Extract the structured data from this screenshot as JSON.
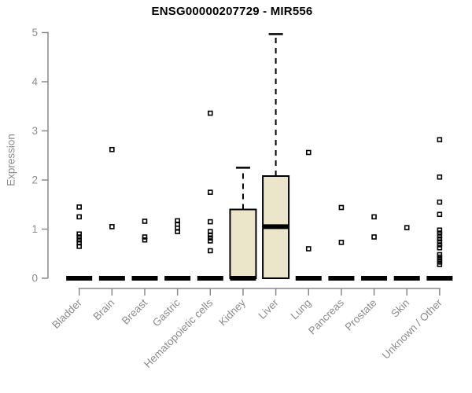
{
  "colors": {
    "box_fill": "#ebe5c9",
    "box_stroke": "#000000",
    "axis": "#8a8a8a",
    "tick_label": "#8c8c8c",
    "title": "#000000",
    "outlier": "#000000"
  },
  "chart_data": {
    "type": "box",
    "title": "ENSG00000207729 - MIR556",
    "xlabel": "",
    "ylabel": "Expression",
    "ylim": [
      0,
      5
    ],
    "yticks": [
      0,
      1,
      2,
      3,
      4,
      5
    ],
    "grid": false,
    "legend": false,
    "categories": [
      "Bladder",
      "Brain",
      "Breast",
      "Gastric",
      "Hematopoietic cells",
      "Kidney",
      "Liver",
      "Lung",
      "Pancreas",
      "Prostate",
      "Skin",
      "Unknown / Other"
    ],
    "boxes": [
      {
        "category": "Bladder",
        "q1": 0,
        "median": 0,
        "q3": 0,
        "whisker_low": 0,
        "whisker_high": 0,
        "outliers": [
          1.45,
          1.25,
          0.9,
          0.84,
          0.78,
          0.72,
          0.65
        ]
      },
      {
        "category": "Brain",
        "q1": 0,
        "median": 0,
        "q3": 0,
        "whisker_low": 0,
        "whisker_high": 0,
        "outliers": [
          2.62,
          1.05
        ]
      },
      {
        "category": "Breast",
        "q1": 0,
        "median": 0,
        "q3": 0,
        "whisker_low": 0,
        "whisker_high": 0,
        "outliers": [
          1.16,
          0.84,
          0.78
        ]
      },
      {
        "category": "Gastric",
        "q1": 0,
        "median": 0,
        "q3": 0,
        "whisker_low": 0,
        "whisker_high": 0,
        "outliers": [
          1.17,
          1.1,
          1.02,
          0.95
        ]
      },
      {
        "category": "Hematopoietic cells",
        "q1": 0,
        "median": 0,
        "q3": 0,
        "whisker_low": 0,
        "whisker_high": 0,
        "outliers": [
          3.36,
          1.75,
          1.15,
          0.95,
          0.88,
          0.82,
          0.76,
          0.56
        ]
      },
      {
        "category": "Kidney",
        "q1": 0,
        "median": 0,
        "q3": 1.4,
        "whisker_low": 0,
        "whisker_high": 2.25,
        "outliers": []
      },
      {
        "category": "Liver",
        "q1": 0,
        "median": 1.05,
        "q3": 2.08,
        "whisker_low": 0,
        "whisker_high": 4.97,
        "outliers": []
      },
      {
        "category": "Lung",
        "q1": 0,
        "median": 0,
        "q3": 0,
        "whisker_low": 0,
        "whisker_high": 0,
        "outliers": [
          2.56,
          0.6
        ]
      },
      {
        "category": "Pancreas",
        "q1": 0,
        "median": 0,
        "q3": 0,
        "whisker_low": 0,
        "whisker_high": 0,
        "outliers": [
          1.44,
          0.73
        ]
      },
      {
        "category": "Prostate",
        "q1": 0,
        "median": 0,
        "q3": 0,
        "whisker_low": 0,
        "whisker_high": 0,
        "outliers": [
          1.25,
          0.84
        ]
      },
      {
        "category": "Skin",
        "q1": 0,
        "median": 0,
        "q3": 0,
        "whisker_low": 0,
        "whisker_high": 0,
        "outliers": [
          1.03
        ]
      },
      {
        "category": "Unknown / Other",
        "q1": 0,
        "median": 0,
        "q3": 0,
        "whisker_low": 0,
        "whisker_high": 0,
        "outliers": [
          2.82,
          2.06,
          1.55,
          1.3,
          0.98,
          0.92,
          0.86,
          0.8,
          0.74,
          0.68,
          0.62,
          0.48,
          0.43,
          0.38,
          0.33,
          0.28
        ]
      }
    ]
  }
}
